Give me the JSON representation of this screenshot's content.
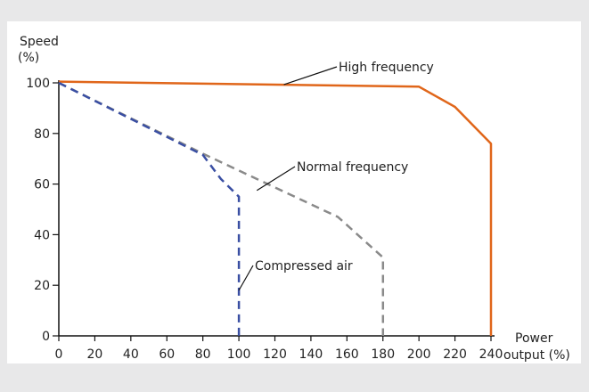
{
  "chart_data": {
    "type": "line",
    "ylabel_line1": "Speed",
    "ylabel_line2": "(%)",
    "xlabel_line1": "Power",
    "xlabel_line2": "output (%)",
    "xlim": [
      0,
      240
    ],
    "ylim": [
      0,
      100
    ],
    "x_ticks": [
      0,
      20,
      40,
      60,
      80,
      100,
      120,
      140,
      160,
      180,
      200,
      220,
      240
    ],
    "y_ticks": [
      0,
      20,
      40,
      60,
      80,
      100
    ],
    "grid": false,
    "series": [
      {
        "name": "High frequency",
        "style": "solid",
        "color": "#e0661a",
        "points": [
          [
            0,
            100.5
          ],
          [
            200,
            98.5
          ],
          [
            220,
            90.5
          ],
          [
            240,
            76
          ],
          [
            240,
            0
          ]
        ]
      },
      {
        "name": "Normal frequency",
        "style": "dashed",
        "color": "#8a8a8a",
        "points": [
          [
            0,
            100
          ],
          [
            80,
            72
          ],
          [
            155,
            47
          ],
          [
            180,
            31
          ],
          [
            180,
            0
          ]
        ]
      },
      {
        "name": "Compressed air",
        "style": "dashed",
        "color": "#3a4fa3",
        "points": [
          [
            0,
            100
          ],
          [
            80,
            71.5
          ],
          [
            90,
            62
          ],
          [
            100,
            55
          ],
          [
            100,
            0
          ]
        ]
      }
    ]
  }
}
